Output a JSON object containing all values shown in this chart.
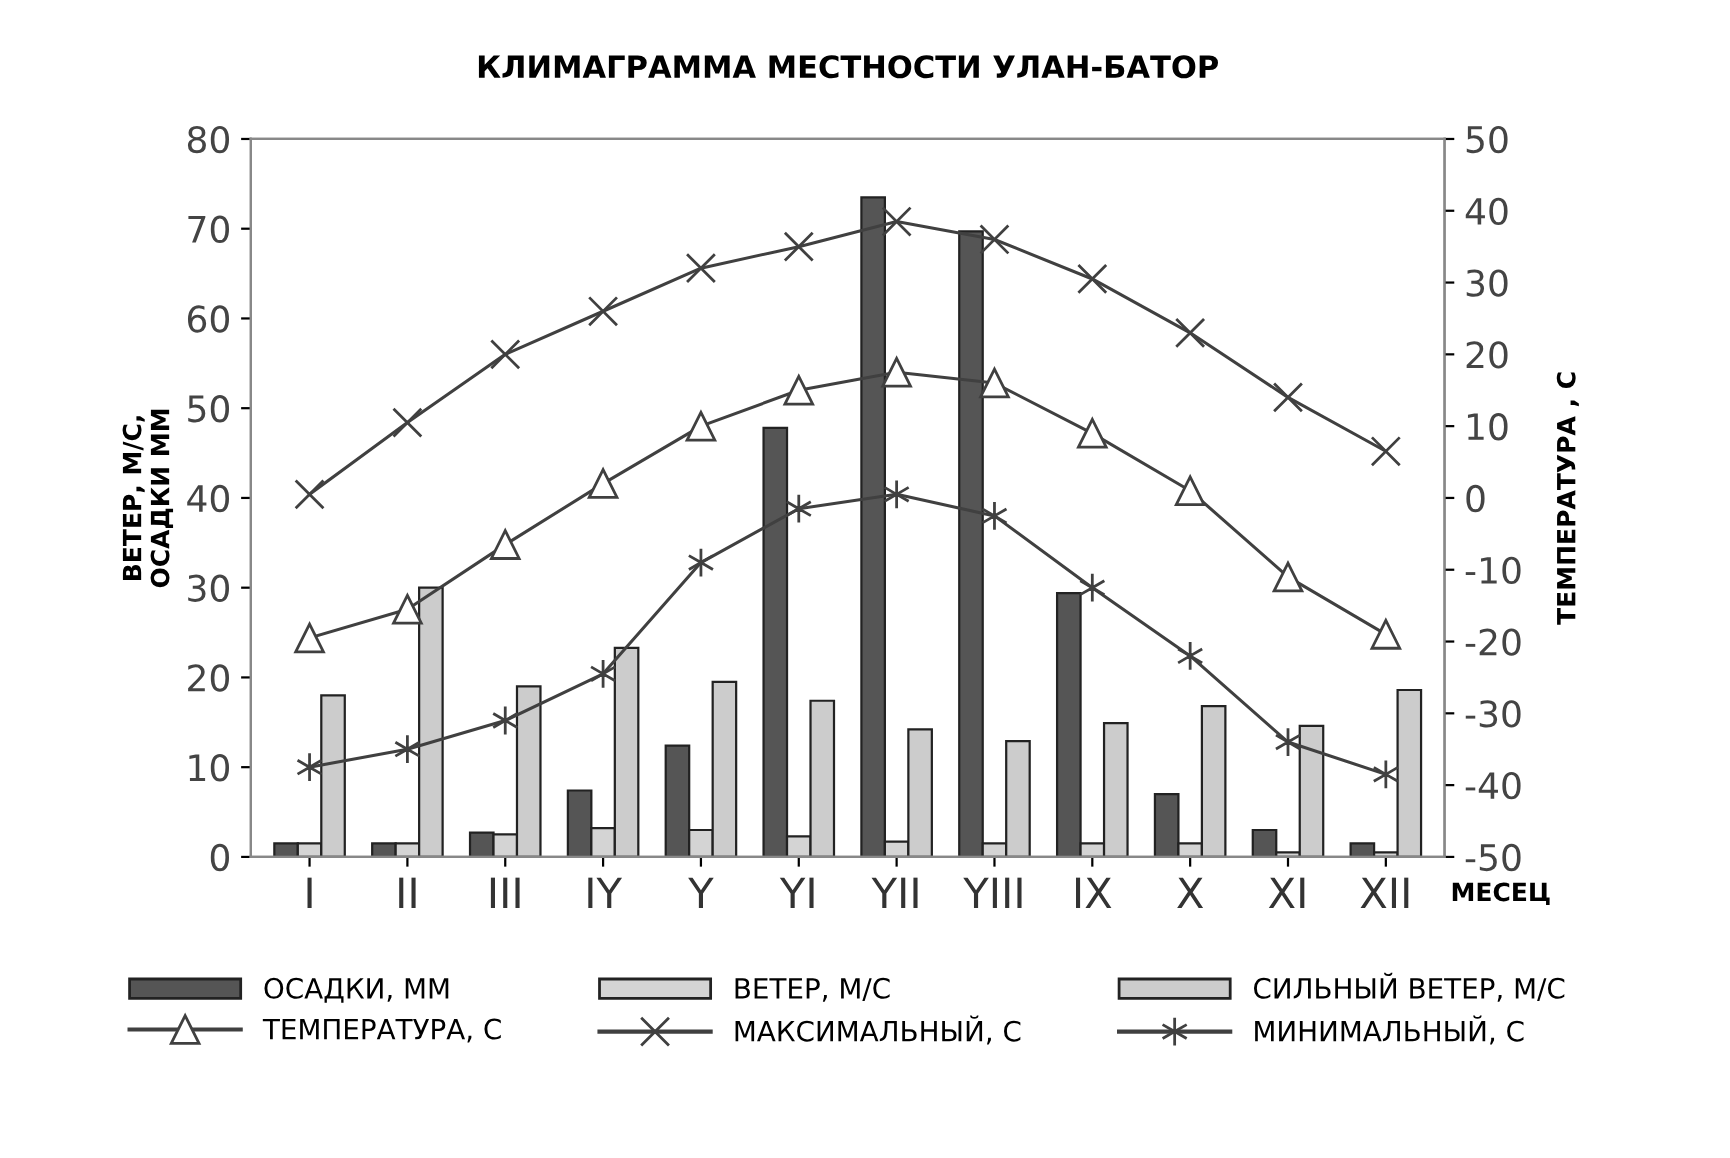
{
  "chart_data": {
    "type": "bar",
    "title": "КЛИМАГРАММА МЕСТНОСТИ УЛАН-БАТОР",
    "xlabel": "МЕСЕЦ",
    "ylabel": "ВЕТЕР, М/С,\nОСАДКИ ММ",
    "y2label": "ТЕМПЕРАТУРА , С",
    "categories": [
      "I",
      "II",
      "III",
      "IY",
      "Y",
      "YI",
      "YII",
      "YIII",
      "IX",
      "X",
      "XI",
      "XII"
    ],
    "ylim": [
      0,
      80
    ],
    "yticks": [
      0,
      10,
      20,
      30,
      40,
      50,
      60,
      70,
      80
    ],
    "y2lim": [
      -50,
      50
    ],
    "y2ticks": [
      -50,
      -40,
      -30,
      -20,
      -10,
      0,
      10,
      20,
      30,
      40,
      50
    ],
    "grid": false,
    "legend": "bottom",
    "series": [
      {
        "name": "ОСАДКИ, ММ",
        "type": "bar",
        "color": "#555555",
        "values": [
          1.5,
          1.5,
          2.7,
          7.4,
          12.4,
          47.8,
          73.5,
          69.7,
          29.4,
          7,
          3,
          1.5
        ]
      },
      {
        "name": "ВЕТЕР, М/С",
        "type": "bar",
        "color": "#d4d4d4",
        "values": [
          1.5,
          1.5,
          2.5,
          3.2,
          3,
          2.3,
          1.7,
          1.5,
          1.5,
          1.5,
          0.5,
          0.5
        ]
      },
      {
        "name": "СИЛЬНЫЙ ВЕТЕР, М/С",
        "type": "bar",
        "color": "#cccccc",
        "values": [
          18,
          30,
          19,
          23.3,
          19.5,
          17.4,
          14.2,
          12.9,
          14.9,
          16.8,
          14.6,
          18.6
        ]
      },
      {
        "name": "ТЕМПЕРАТУРА, С",
        "type": "line",
        "axis": "y2",
        "marker": "triangle",
        "color": "#404040",
        "values": [
          -19.5,
          -15.5,
          -6.5,
          2,
          10,
          15,
          17.5,
          16,
          9,
          1,
          -11,
          -19
        ]
      },
      {
        "name": "МАКСИМАЛЬНЫЙ, С",
        "type": "line",
        "axis": "y2",
        "marker": "cross",
        "color": "#404040",
        "values": [
          0.5,
          10.5,
          20,
          26,
          32,
          35,
          38.5,
          36,
          30.5,
          23,
          14,
          6.5
        ]
      },
      {
        "name": "МИНИМАЛЬНЫЙ, С",
        "type": "line",
        "axis": "y2",
        "marker": "cross",
        "color": "#404040",
        "values": [
          -37.5,
          -35,
          -31,
          -24.5,
          -9,
          -1.5,
          0.5,
          -2.5,
          -12.5,
          -22,
          -34,
          -38.5
        ]
      }
    ]
  }
}
